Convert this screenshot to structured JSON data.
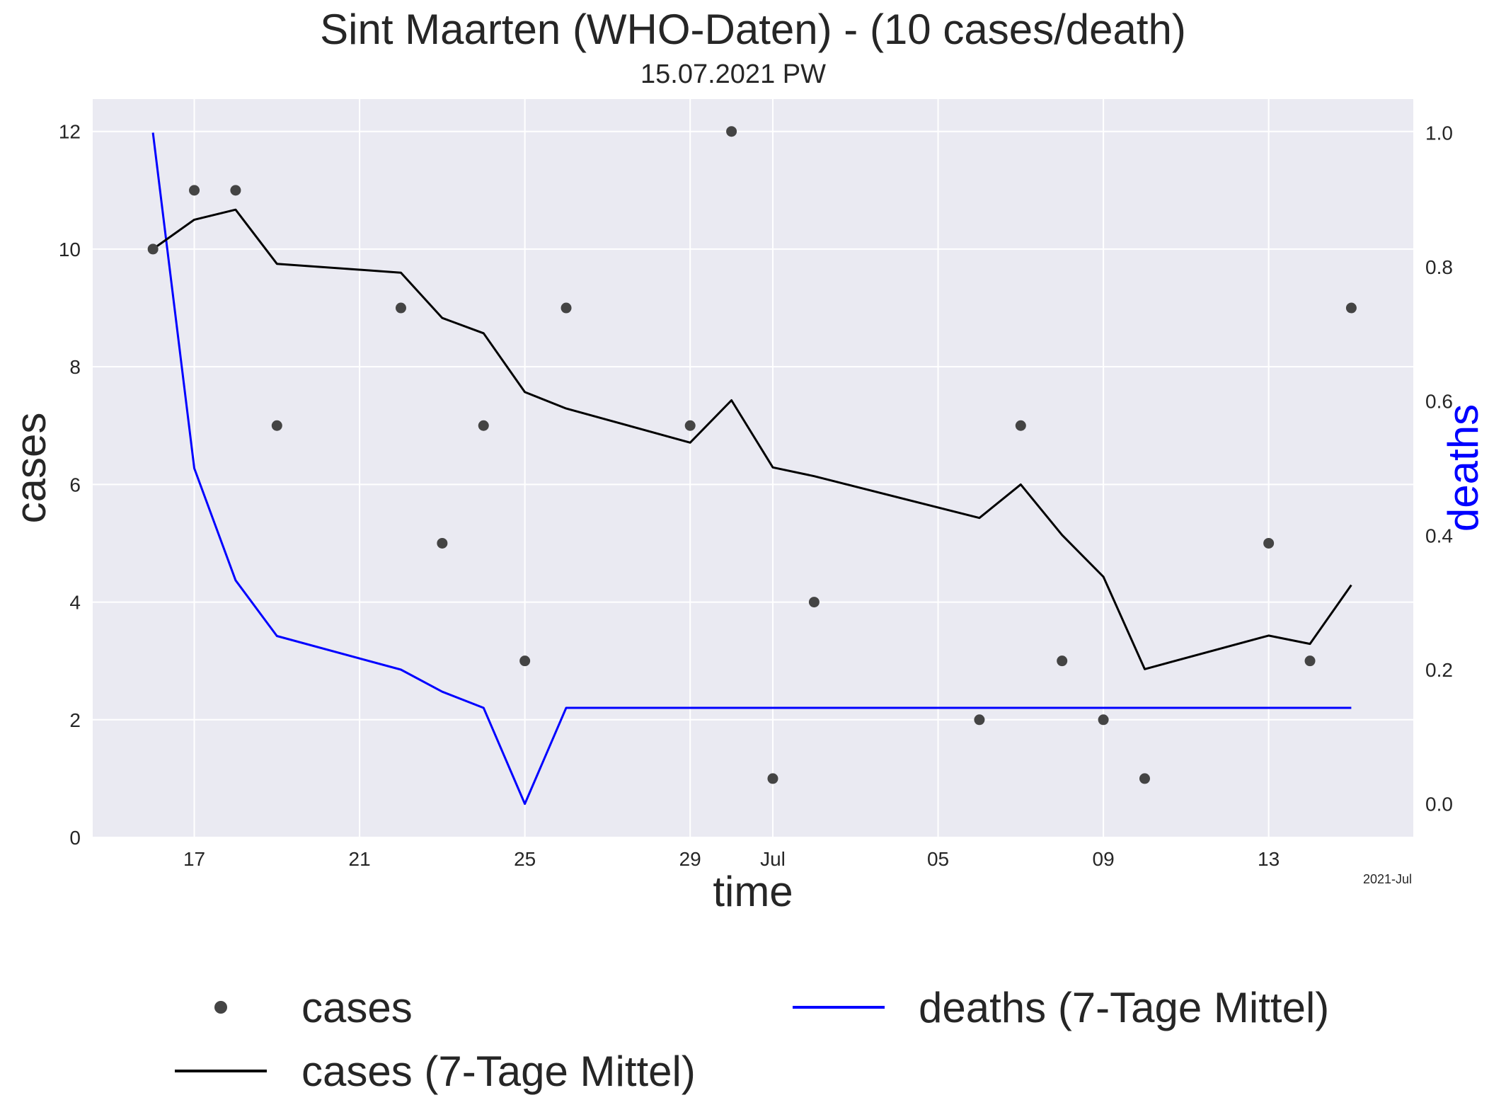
{
  "chart_data": {
    "type": "line",
    "title": "Sint Maarten (WHO-Daten) - (10 cases/death)",
    "subtitle": "15.07.2021 PW",
    "xlabel": "time",
    "ylabel": "cases",
    "y2label": "deaths",
    "x_offset_label": "2021-Jul",
    "x_ticks": [
      {
        "date": "2021-06-17",
        "label": "17"
      },
      {
        "date": "2021-06-21",
        "label": "21"
      },
      {
        "date": "2021-06-25",
        "label": "25"
      },
      {
        "date": "2021-06-29",
        "label": "29"
      },
      {
        "date": "2021-07-01",
        "label": "Jul"
      },
      {
        "date": "2021-07-05",
        "label": "05"
      },
      {
        "date": "2021-07-09",
        "label": "09"
      },
      {
        "date": "2021-07-13",
        "label": "13"
      }
    ],
    "xlim": [
      "2021-06-14T13:00",
      "2021-07-16T12:00"
    ],
    "ylim": [
      0,
      12.55
    ],
    "y_ticks": [
      "0",
      "2",
      "4",
      "6",
      "8",
      "10",
      "12"
    ],
    "y2lim": [
      -0.05,
      1.05
    ],
    "y2_ticks": [
      "0.0",
      "0.2",
      "0.4",
      "0.6",
      "0.8",
      "1.0"
    ],
    "grid": true,
    "legend_position": "bottom",
    "colors": {
      "background": "#eaeaf2",
      "grid": "#ffffff",
      "cases": "#444444",
      "cases_avg": "#000000",
      "deaths_avg": "#0000ff",
      "y2label": "#0000ff"
    },
    "series": [
      {
        "name": "cases",
        "kind": "scatter",
        "points": [
          {
            "x": "2021-06-16",
            "y": 10
          },
          {
            "x": "2021-06-17",
            "y": 11
          },
          {
            "x": "2021-06-18",
            "y": 11
          },
          {
            "x": "2021-06-19",
            "y": 7
          },
          {
            "x": "2021-06-22",
            "y": 9
          },
          {
            "x": "2021-06-23",
            "y": 5
          },
          {
            "x": "2021-06-24",
            "y": 7
          },
          {
            "x": "2021-06-25",
            "y": 3
          },
          {
            "x": "2021-06-26",
            "y": 9
          },
          {
            "x": "2021-06-29",
            "y": 7
          },
          {
            "x": "2021-06-30",
            "y": 12
          },
          {
            "x": "2021-07-01",
            "y": 1
          },
          {
            "x": "2021-07-02",
            "y": 4
          },
          {
            "x": "2021-07-06",
            "y": 2
          },
          {
            "x": "2021-07-07",
            "y": 7
          },
          {
            "x": "2021-07-08",
            "y": 3
          },
          {
            "x": "2021-07-09",
            "y": 2
          },
          {
            "x": "2021-07-10",
            "y": 1
          },
          {
            "x": "2021-07-13",
            "y": 5
          },
          {
            "x": "2021-07-14",
            "y": 3
          },
          {
            "x": "2021-07-15",
            "y": 9
          }
        ]
      },
      {
        "name": "cases (7-Tage Mittel)",
        "kind": "line",
        "points": [
          {
            "x": "2021-06-16",
            "y": 10.0
          },
          {
            "x": "2021-06-17",
            "y": 10.5
          },
          {
            "x": "2021-06-18",
            "y": 10.67
          },
          {
            "x": "2021-06-19",
            "y": 9.75
          },
          {
            "x": "2021-06-22",
            "y": 9.6
          },
          {
            "x": "2021-06-23",
            "y": 8.83
          },
          {
            "x": "2021-06-24",
            "y": 8.57
          },
          {
            "x": "2021-06-25",
            "y": 7.57
          },
          {
            "x": "2021-06-26",
            "y": 7.29
          },
          {
            "x": "2021-06-29",
            "y": 6.71
          },
          {
            "x": "2021-06-30",
            "y": 7.43
          },
          {
            "x": "2021-07-01",
            "y": 6.29
          },
          {
            "x": "2021-07-02",
            "y": 6.14
          },
          {
            "x": "2021-07-06",
            "y": 5.43
          },
          {
            "x": "2021-07-07",
            "y": 6.0
          },
          {
            "x": "2021-07-08",
            "y": 5.14
          },
          {
            "x": "2021-07-09",
            "y": 4.43
          },
          {
            "x": "2021-07-10",
            "y": 2.86
          },
          {
            "x": "2021-07-13",
            "y": 3.43
          },
          {
            "x": "2021-07-14",
            "y": 3.29
          },
          {
            "x": "2021-07-15",
            "y": 4.29
          }
        ]
      },
      {
        "name": "deaths (7-Tage Mittel)",
        "kind": "line",
        "axis": "right",
        "points": [
          {
            "x": "2021-06-16",
            "y": 1.0
          },
          {
            "x": "2021-06-17",
            "y": 0.5
          },
          {
            "x": "2021-06-18",
            "y": 0.333
          },
          {
            "x": "2021-06-19",
            "y": 0.25
          },
          {
            "x": "2021-06-22",
            "y": 0.2
          },
          {
            "x": "2021-06-23",
            "y": 0.167
          },
          {
            "x": "2021-06-24",
            "y": 0.143
          },
          {
            "x": "2021-06-25",
            "y": 0.0
          },
          {
            "x": "2021-06-26",
            "y": 0.143
          },
          {
            "x": "2021-06-29",
            "y": 0.143
          },
          {
            "x": "2021-06-30",
            "y": 0.143
          },
          {
            "x": "2021-07-01",
            "y": 0.143
          },
          {
            "x": "2021-07-02",
            "y": 0.143
          },
          {
            "x": "2021-07-06",
            "y": 0.143
          },
          {
            "x": "2021-07-07",
            "y": 0.143
          },
          {
            "x": "2021-07-08",
            "y": 0.143
          },
          {
            "x": "2021-07-09",
            "y": 0.143
          },
          {
            "x": "2021-07-10",
            "y": 0.143
          },
          {
            "x": "2021-07-13",
            "y": 0.143
          },
          {
            "x": "2021-07-14",
            "y": 0.143
          },
          {
            "x": "2021-07-15",
            "y": 0.143
          }
        ]
      }
    ]
  }
}
